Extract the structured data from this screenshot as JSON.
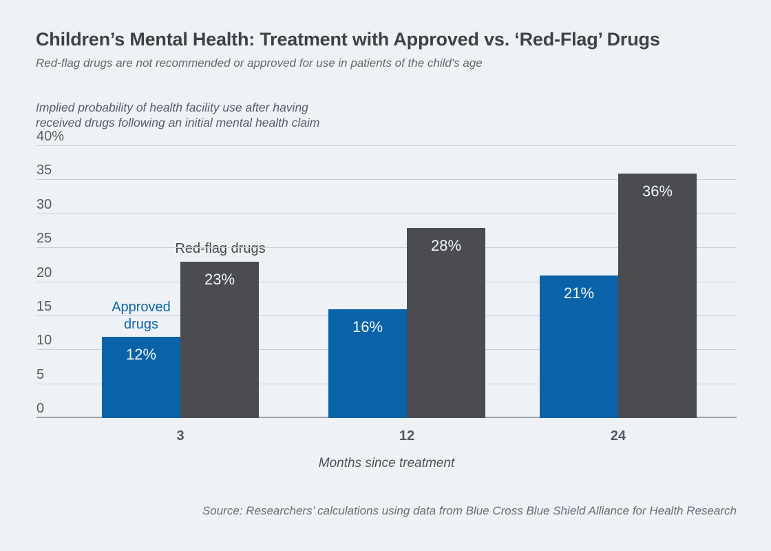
{
  "header": {
    "title": "Children’s Mental Health: Treatment with Approved vs. ‘Red-Flag’ Drugs",
    "subtitle": "Red-flag drugs are not recommended or approved for use in patients of the child's age"
  },
  "chart_data": {
    "type": "bar",
    "categories": [
      "3",
      "12",
      "24"
    ],
    "series": [
      {
        "name": "Approved drugs",
        "values": [
          12,
          16,
          21
        ],
        "value_labels": [
          "12%",
          "16%",
          "21%"
        ],
        "color": "#0a63a8"
      },
      {
        "name": "Red-flag drugs",
        "values": [
          23,
          28,
          36
        ],
        "value_labels": [
          "23%",
          "28%",
          "36%"
        ],
        "color": "#4a4c4f"
      }
    ],
    "y_axis_note": "Implied probability of health facility use after having\nreceived drugs following an initial mental health claim",
    "xlabel": "Months since treatment",
    "ylabel": "",
    "ylim": [
      0,
      40
    ],
    "yticks": [
      {
        "value": 40,
        "label": "40%"
      },
      {
        "value": 35,
        "label": "35"
      },
      {
        "value": 30,
        "label": "30"
      },
      {
        "value": 25,
        "label": "25"
      },
      {
        "value": 20,
        "label": "20"
      },
      {
        "value": 15,
        "label": "15"
      },
      {
        "value": 10,
        "label": "10"
      },
      {
        "value": 5,
        "label": "5"
      },
      {
        "value": 0,
        "label": "0"
      }
    ],
    "grid": true,
    "legend_position": "annotations-above-bars",
    "colors": {
      "approved": "#0a63a8",
      "red_flag": "#4a4c4f",
      "background": "#eef2f7",
      "gridline": "#c9cfd7"
    }
  },
  "footer": {
    "source": "Source: Researchers’ calculations using data from Blue Cross Blue Shield Alliance for Health Research"
  }
}
